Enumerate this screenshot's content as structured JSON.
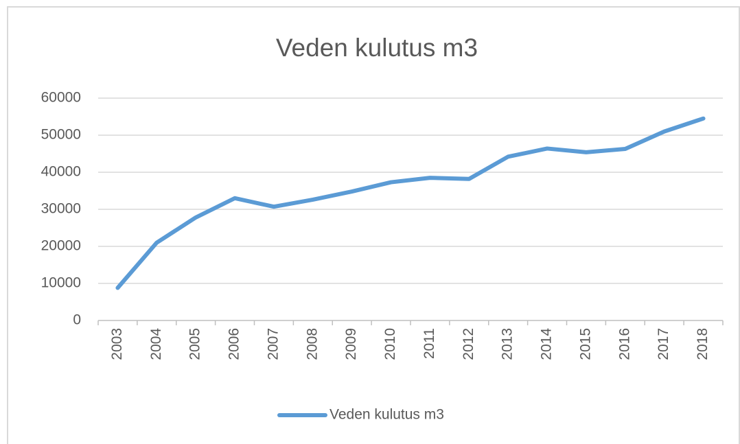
{
  "chart_data": {
    "type": "line",
    "title": "Veden kulutus m3",
    "categories": [
      "2003",
      "2004",
      "2005",
      "2006",
      "2007",
      "2008",
      "2009",
      "2010",
      "2011",
      "2012",
      "2013",
      "2014",
      "2015",
      "2016",
      "2017",
      "2018"
    ],
    "series": [
      {
        "name": "Veden kulutus m3",
        "color": "#5b9bd5",
        "values": [
          8800,
          21000,
          27800,
          33000,
          30700,
          32600,
          34800,
          37300,
          38500,
          38200,
          44200,
          46400,
          45400,
          46300,
          51000,
          54500
        ]
      }
    ],
    "ylim": [
      0,
      60000
    ],
    "yticks": [
      0,
      10000,
      20000,
      30000,
      40000,
      50000,
      60000
    ],
    "grid": true
  }
}
